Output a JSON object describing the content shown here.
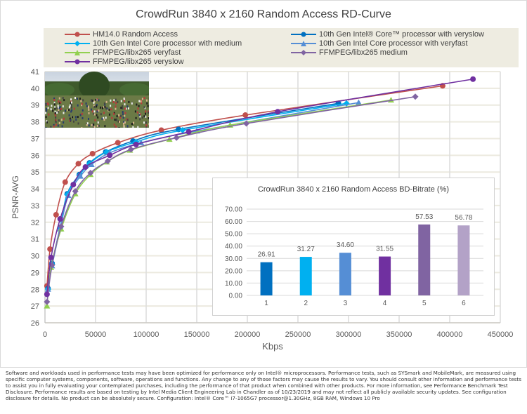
{
  "title": "CrowdRun 3840 x 2160 Random Access RD-Curve",
  "footer": "Software and workloads used in performance tests may have been optimized for performance only on Intel® microprocessors. Performance tests, such as SYSmark and MobileMark, are measured using specific computer systems, components, software, operations and functions. Any change to any of those factors may cause the results to vary. You should consult other information and performance tests to assist you in fully evaluating your contemplated purchases, including the performance of that product when combined with other products. For more information, see Performance Benchmark Test Disclosure. Performance results are based on testing by Intel Media Client Engineering Lab in Chandler as of 10/23/2019 and may not reflect all publicly available security updates. See configuration disclosure for details. No product can be absolutely secure. Configuration: Intel® Core™ i7-1065G7 processor@1.30GHz, 8GB RAM, Windows 10 Pro",
  "photo": {
    "description": "crowd of runners on a field with trees"
  },
  "chart_data": [
    {
      "type": "line",
      "title": "CrowdRun 3840 x 2160 Random Access RD-Curve",
      "xlabel": "Kbps",
      "ylabel": "PSNR-AVG",
      "xlim": [
        0,
        450000
      ],
      "ylim": [
        26,
        41
      ],
      "xticks": [
        "0",
        "50000",
        "100000",
        "150000",
        "200000",
        "250000",
        "300000",
        "350000",
        "400000",
        "450000"
      ],
      "yticks": [
        "26",
        "27",
        "28",
        "29",
        "30",
        "31",
        "32",
        "33",
        "34",
        "35",
        "36",
        "37",
        "38",
        "39",
        "40",
        "41"
      ],
      "grid": true,
      "legend_position": "top",
      "series": [
        {
          "name": "HM14.0 Random Access",
          "color": "#c0504d",
          "marker": "circle",
          "x": [
            2000,
            5000,
            11000,
            20000,
            33000,
            47000,
            72000,
            115000,
            198000,
            393000
          ],
          "y": [
            28.2,
            30.4,
            32.45,
            34.4,
            35.5,
            36.1,
            36.75,
            37.5,
            38.4,
            40.15
          ]
        },
        {
          "name": "10th Gen Intel® Core™ processor with veryslow",
          "color": "#0070c0",
          "marker": "circle",
          "x": [
            3000,
            7000,
            15000,
            22000,
            34000,
            44000,
            60000,
            87000,
            132000,
            290000
          ],
          "y": [
            28.05,
            29.55,
            31.7,
            33.7,
            34.85,
            35.55,
            36.2,
            36.85,
            37.55,
            39.1
          ]
        },
        {
          "name": "10th Gen Intel Core processor with medium",
          "color": "#00b0f0",
          "marker": "diamond",
          "x": [
            3000,
            7000,
            15000,
            22000,
            34000,
            44000,
            61000,
            90000,
            136000,
            298000
          ],
          "y": [
            28.0,
            29.5,
            31.65,
            33.65,
            34.8,
            35.5,
            36.2,
            36.8,
            37.5,
            39.1
          ]
        },
        {
          "name": "10th Gen Intel Core processor with veryfast",
          "color": "#558ed5",
          "marker": "triangle",
          "x": [
            3000,
            7000,
            15000,
            23000,
            35000,
            46000,
            64000,
            95000,
            150000,
            310000
          ],
          "y": [
            28.0,
            29.4,
            31.6,
            33.6,
            34.75,
            35.45,
            36.15,
            36.75,
            37.45,
            39.15
          ]
        },
        {
          "name": "FFMPEG/libx265 veryfast",
          "color": "#92d050",
          "marker": "triangle",
          "x": [
            2000,
            6000,
            16000,
            30000,
            45000,
            61000,
            84000,
            123000,
            183000,
            342000
          ],
          "y": [
            27.0,
            29.3,
            31.6,
            33.7,
            34.85,
            35.6,
            36.3,
            36.95,
            37.8,
            39.3
          ]
        },
        {
          "name": "FFMPEG/libx265 medium",
          "color": "#8064a2",
          "marker": "diamond",
          "x": [
            2000,
            7000,
            16000,
            30000,
            45000,
            62000,
            85000,
            130000,
            199000,
            366000
          ],
          "y": [
            27.25,
            29.45,
            31.75,
            33.85,
            34.95,
            35.65,
            36.35,
            37.05,
            37.9,
            39.5
          ]
        },
        {
          "name": "FFMPEG/libx265 veryslow",
          "color": "#7030a0",
          "marker": "circle",
          "x": [
            2000,
            6000,
            15000,
            28000,
            40000,
            64000,
            90000,
            142000,
            230000,
            423000
          ],
          "y": [
            27.7,
            29.9,
            32.2,
            34.25,
            35.3,
            36.0,
            36.65,
            37.4,
            38.6,
            40.55
          ]
        }
      ]
    },
    {
      "type": "bar",
      "title": "CrowdRun 3840 x 2160 Random Access BD-Bitrate (%)",
      "categories": [
        "1",
        "2",
        "3",
        "4",
        "5",
        "6"
      ],
      "values": [
        26.91,
        31.27,
        34.6,
        31.55,
        57.53,
        56.78
      ],
      "labels": [
        "26.91",
        "31.27",
        "34.60",
        "31.55",
        "57.53",
        "56.78"
      ],
      "colors": [
        "#0070c0",
        "#00b0f0",
        "#558ed5",
        "#7030a0",
        "#8064a2",
        "#b3a2c7"
      ],
      "ylim": [
        0,
        70
      ],
      "yticks": [
        "0.00",
        "10.00",
        "20.00",
        "30.00",
        "40.00",
        "50.00",
        "60.00",
        "70.00"
      ],
      "grid": true
    }
  ]
}
